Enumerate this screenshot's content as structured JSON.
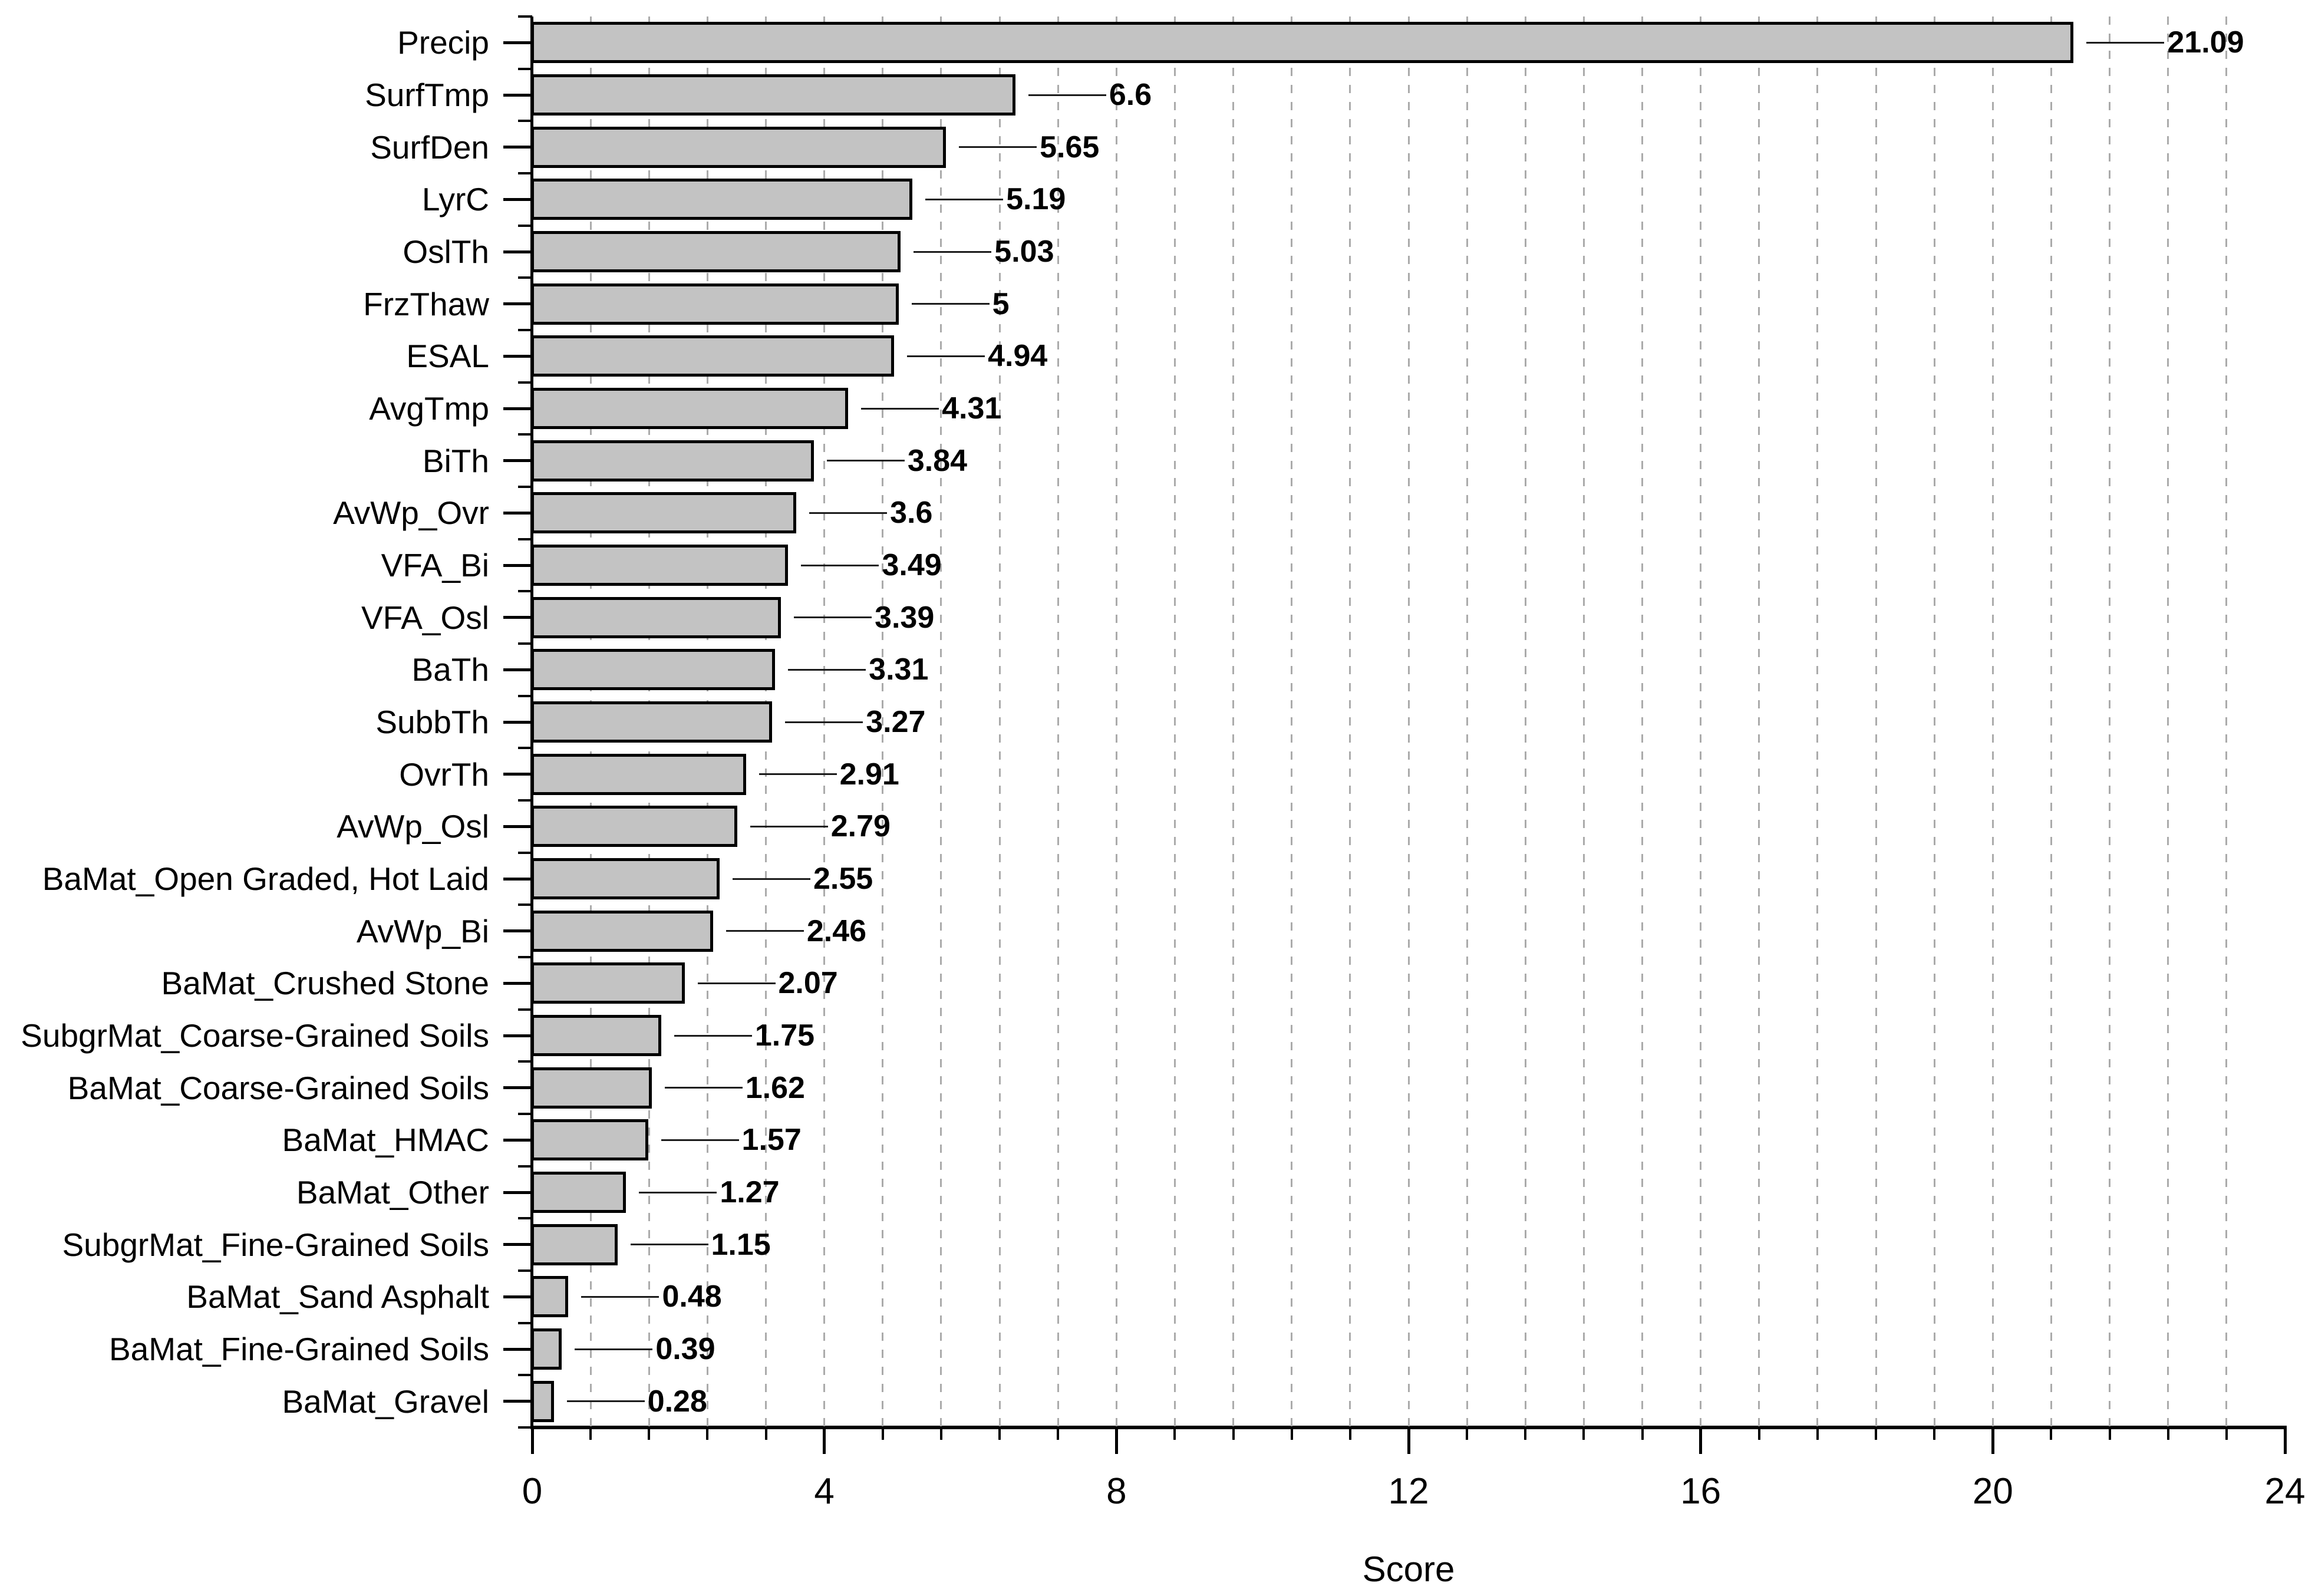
{
  "chart_data": {
    "type": "bar",
    "orientation": "horizontal",
    "title": "",
    "xlabel": "Score",
    "ylabel": "",
    "xlim": [
      0,
      24
    ],
    "x_major_ticks": [
      0,
      4,
      8,
      12,
      16,
      20,
      24
    ],
    "x_major_tick_labels": [
      "0",
      "4",
      "8",
      "12",
      "16",
      "20",
      "24"
    ],
    "x_minor_unit": 0.8,
    "grid": "vertical dashed gridlines at every minor tick (0.8 units)",
    "legend_position": "none",
    "categories": [
      "Precip",
      "SurfTmp",
      "SurfDen",
      "LyrC",
      "OslTh",
      "FrzThaw",
      "ESAL",
      "AvgTmp",
      "BiTh",
      "AvWp_Ovr",
      "VFA_Bi",
      "VFA_Osl",
      "BaTh",
      "SubbTh",
      "OvrTh",
      "AvWp_Osl",
      "BaMat_Open Graded, Hot Laid",
      "AvWp_Bi",
      "BaMat_Crushed Stone",
      "SubgrMat_Coarse-Grained Soils",
      "BaMat_Coarse-Grained Soils",
      "BaMat_HMAC",
      "BaMat_Other",
      "SubgrMat_Fine-Grained Soils",
      "BaMat_Sand Asphalt",
      "BaMat_Fine-Grained Soils",
      "BaMat_Gravel"
    ],
    "values": [
      21.09,
      6.6,
      5.65,
      5.19,
      5.03,
      5,
      4.94,
      4.31,
      3.84,
      3.6,
      3.49,
      3.39,
      3.31,
      3.27,
      2.91,
      2.79,
      2.55,
      2.46,
      2.07,
      1.75,
      1.62,
      1.57,
      1.27,
      1.15,
      0.48,
      0.39,
      0.28
    ],
    "value_labels": [
      "21.09",
      "6.6",
      "5.65",
      "5.19",
      "5.03",
      "5",
      "4.94",
      "4.31",
      "3.84",
      "3.6",
      "3.49",
      "3.39",
      "3.31",
      "3.27",
      "2.91",
      "2.79",
      "2.55",
      "2.46",
      "2.07",
      "1.75",
      "1.62",
      "1.57",
      "1.27",
      "1.15",
      "0.48",
      "0.39",
      "0.28"
    ],
    "colors": {
      "background": "#ffffff",
      "bar_fill": "#c3c3c3",
      "bar_border": "#000000",
      "gridline": "#ababab",
      "axis": "#000000",
      "leader_line": "#1c1c1c",
      "text": "#000000"
    }
  }
}
